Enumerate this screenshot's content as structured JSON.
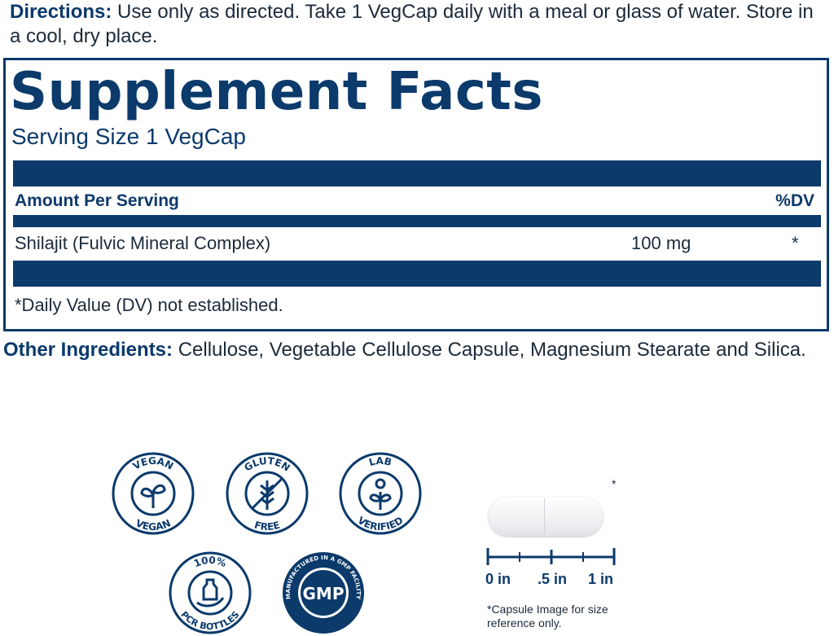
{
  "directions": {
    "label": "Directions:",
    "text": " Use only as directed. Take 1 VegCap daily with a meal or glass of water. Store in a cool, dry place."
  },
  "facts": {
    "title": "Supplement Facts",
    "serving_size": "Serving Size 1 VegCap",
    "amount_header": "Amount Per Serving",
    "dv_header": "%DV",
    "ingredients": [
      {
        "name": "Shilajit (Fulvic Mineral Complex)",
        "amount": "100 mg",
        "dv": "*"
      }
    ],
    "footnote": "*Daily Value (DV) not established."
  },
  "other": {
    "label": "Other Ingredients:",
    "text": " Cellulose, Vegetable Cellulose Capsule, Magnesium Stearate and Silica."
  },
  "badges": [
    {
      "top": "VEGAN",
      "bottom": "VEGAN",
      "icon": "sprout-icon"
    },
    {
      "top": "GLUTEN",
      "bottom": "FREE",
      "icon": "wheat-crossed-icon"
    },
    {
      "top": "LAB",
      "bottom": "VERIFIED",
      "icon": "plant-icon"
    },
    {
      "top": "100%",
      "bottom": "PCR BOTTLES",
      "icon": "bottle-hand-icon"
    },
    {
      "center": "GMP",
      "ring": "MANUFACTURED IN A GMP FACILITY",
      "icon": "gmp-seal-icon"
    }
  ],
  "capsule": {
    "asterisk": "*",
    "ruler": [
      "0 in",
      ".5 in",
      "1 in"
    ],
    "note": "*Capsule Image for size reference only."
  },
  "colors": {
    "brand": "#0b3a6b"
  }
}
